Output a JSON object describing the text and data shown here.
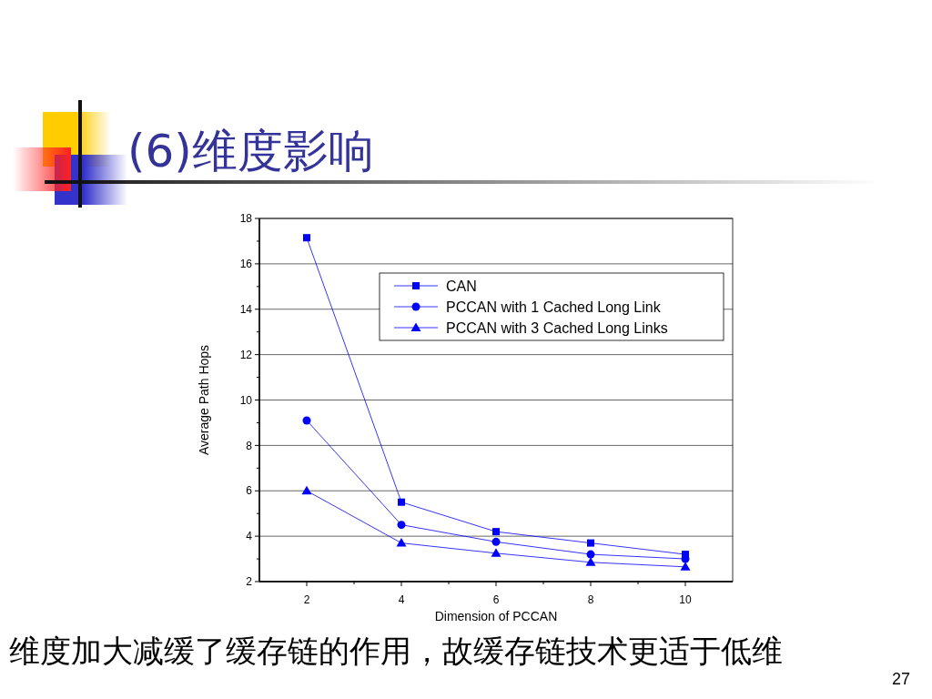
{
  "chart_data": {
    "type": "line",
    "title": "(6)维度影响",
    "xlabel": "Dimension of  PCCAN",
    "ylabel": "Average Path Hops",
    "x": [
      2,
      4,
      6,
      8,
      10
    ],
    "series": [
      {
        "name": "CAN",
        "color": "#0000ff",
        "marker": "square",
        "values": [
          17.15,
          5.5,
          4.2,
          3.7,
          3.2
        ]
      },
      {
        "name": "PCCAN with 1 Cached Long Link",
        "color": "#0000ff",
        "marker": "circle",
        "values": [
          9.1,
          4.5,
          3.75,
          3.2,
          3.0
        ]
      },
      {
        "name": "PCCAN with 3 Cached Long Links",
        "color": "#0000ff",
        "marker": "triangle",
        "values": [
          6.0,
          3.7,
          3.25,
          2.85,
          2.65
        ]
      }
    ],
    "xlim": [
      1,
      11
    ],
    "xticks": [
      2,
      {
        "value": 3,
        "label": null
      },
      4,
      {
        "value": 5,
        "label": null
      },
      6,
      {
        "value": 7,
        "label": null
      },
      8,
      {
        "value": 9,
        "label": null
      },
      10
    ],
    "ylim": [
      2,
      18
    ],
    "yticks": [
      2,
      {
        "value": 3,
        "label": null
      },
      4,
      {
        "value": 5,
        "label": null
      },
      6,
      {
        "value": 7,
        "label": null
      },
      8,
      {
        "value": 9,
        "label": null
      },
      10,
      {
        "value": 11,
        "label": null
      },
      12,
      {
        "value": 13,
        "label": null
      },
      14,
      {
        "value": 15,
        "label": null
      },
      16,
      {
        "value": 17,
        "label": null
      },
      18
    ],
    "grid": "y",
    "legend": "top right",
    "line_style": "solid",
    "annotations": [
      "维度加大减缓了缓存链的作用，故缓存链技术更适于低维",
      "27"
    ]
  }
}
